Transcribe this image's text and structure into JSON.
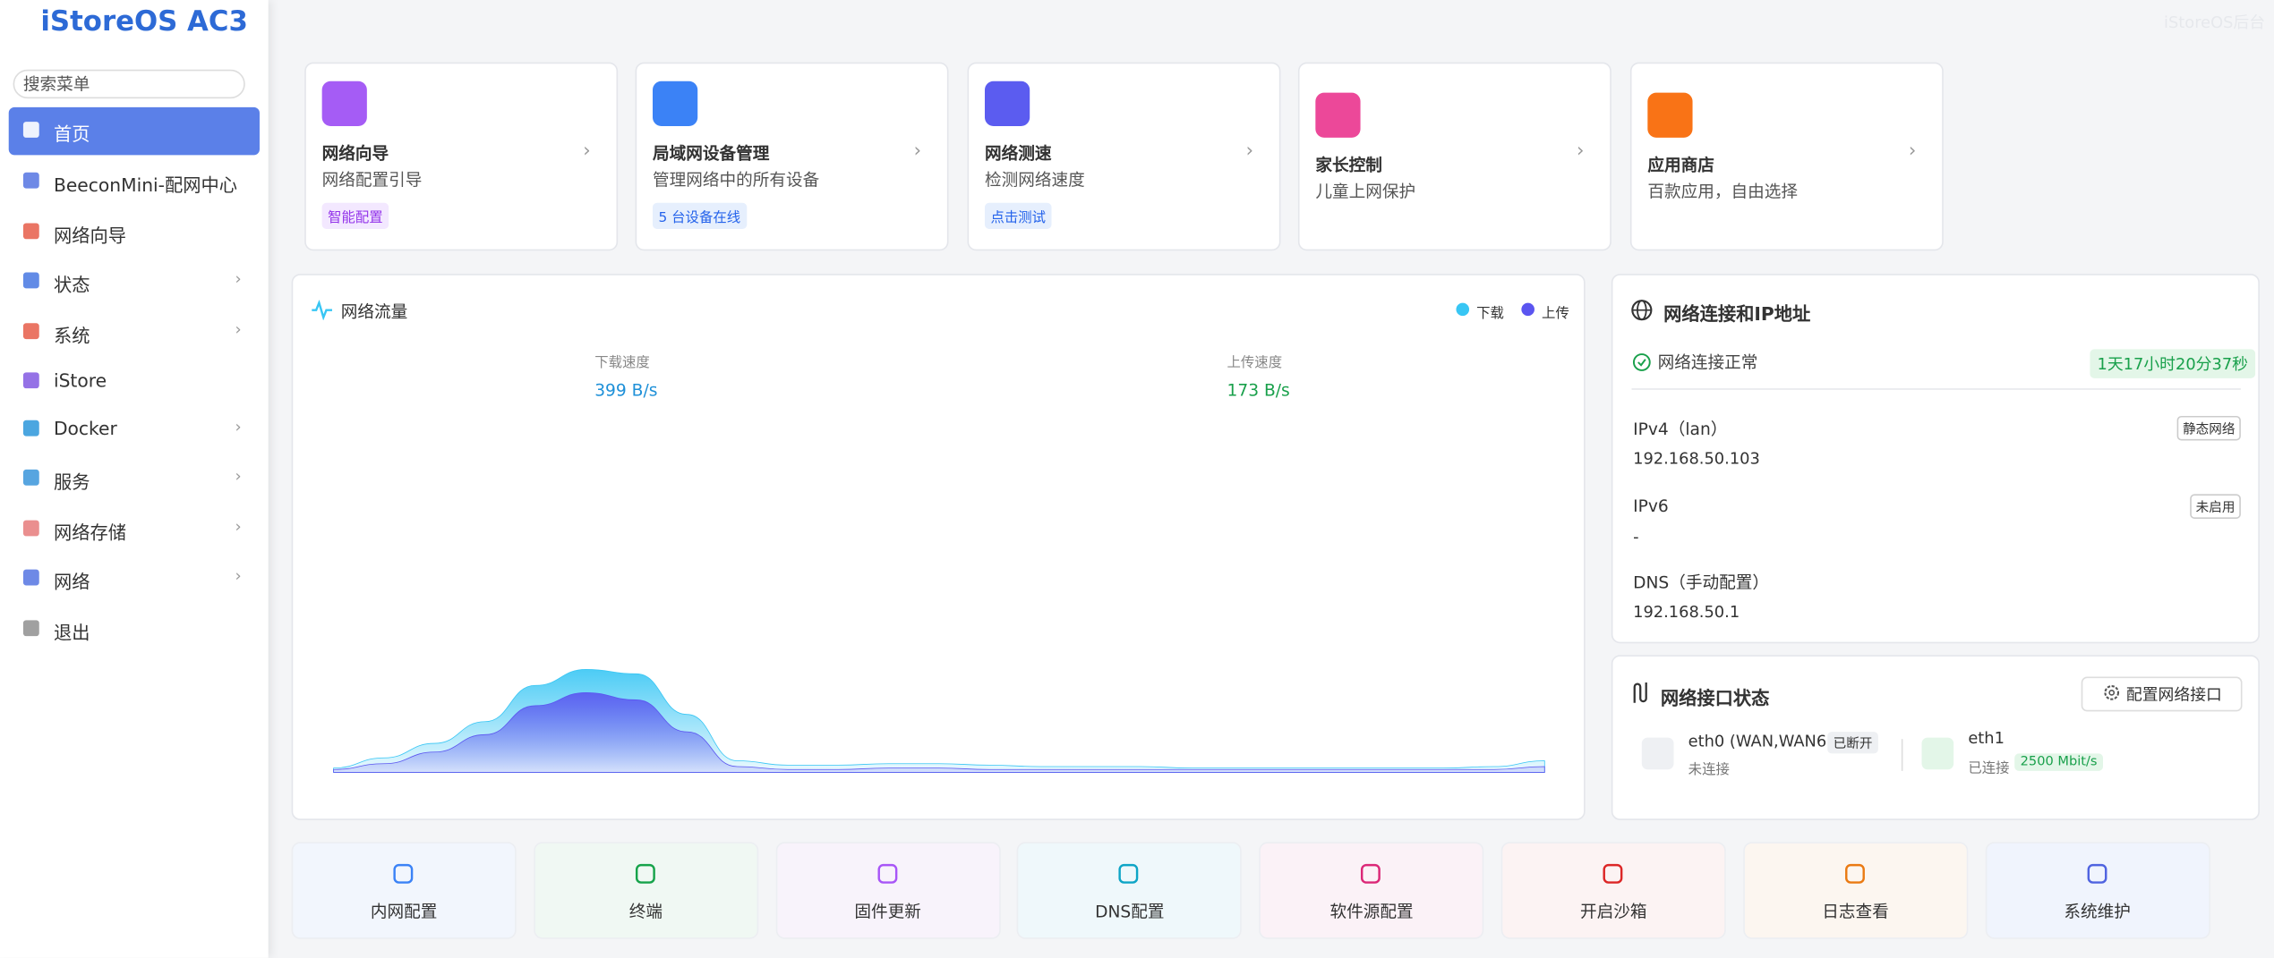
{
  "sidebar": {
    "brand": "iStoreOS AC3",
    "search_placeholder": "搜索菜单",
    "menu": [
      "首页",
      "BeeconMini-配网中心",
      "网络向导",
      "状态",
      "系统",
      "iStore",
      "Docker",
      "服务",
      "网络存储",
      "网络",
      "退出"
    ]
  },
  "watermark": "iStoreOS后台",
  "quick_cards": [
    {
      "title": "网络向导",
      "desc": "网络配置引导",
      "tag": "智能配置"
    },
    {
      "title": "局域网设备管理",
      "desc": "管理网络中的所有设备",
      "tag": "5 台设备在线"
    },
    {
      "title": "网络测速",
      "desc": "检测网络速度",
      "tag": "点击测试"
    },
    {
      "title": "家长控制",
      "desc": "儿童上网保护"
    },
    {
      "title": "应用商店",
      "desc": "百款应用，自由选择"
    }
  ],
  "traffic": {
    "title": "网络流量",
    "download_label": "下载速度",
    "download_value": "399 B/s",
    "upload_label": "上传速度",
    "upload_value": "173 B/s",
    "chart_data": {
      "type": "area",
      "series": [
        {
          "name": "下载",
          "color": "#38c6f4",
          "values": [
            3,
            10,
            20,
            35,
            60,
            71,
            68,
            40,
            8,
            5,
            5,
            6,
            6,
            5,
            4,
            4,
            4,
            3,
            3,
            3,
            3,
            3,
            3,
            4,
            8
          ]
        },
        {
          "name": "上传",
          "color": "#5b55f0",
          "values": [
            2,
            6,
            14,
            26,
            46,
            55,
            50,
            28,
            4,
            2,
            2,
            3,
            3,
            2,
            2,
            2,
            2,
            2,
            2,
            2,
            2,
            2,
            2,
            2,
            4
          ]
        }
      ]
    }
  },
  "network": {
    "title": "网络连接和IP地址",
    "status": "网络连接正常",
    "uptime": "1天17小时20分37秒",
    "items": [
      {
        "label": "IPv4（lan）",
        "badge": "静态网络",
        "value": "192.168.50.103"
      },
      {
        "label": "IPv6",
        "badge": "未启用",
        "value": "-"
      },
      {
        "label": "DNS（手动配置）",
        "value": "192.168.50.1"
      }
    ]
  },
  "interfaces": {
    "title": "网络接口状态",
    "button": "配置网络接口",
    "ports": [
      {
        "name": "eth0 (WAN,WAN6)",
        "badge": "已断开",
        "status": "未连接"
      },
      {
        "name": "eth1",
        "status": "已连接",
        "speed": "2500 Mbit/s"
      }
    ]
  },
  "shortcuts": [
    "内网配置",
    "终端",
    "固件更新",
    "DNS配置",
    "软件源配置",
    "开启沙箱",
    "日志查看",
    "系统维护"
  ]
}
